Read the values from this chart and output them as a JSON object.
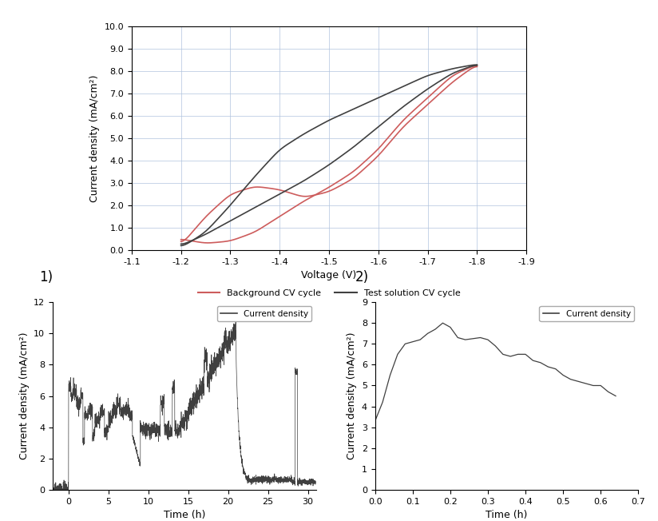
{
  "cv_xlabel": "Voltage (V)",
  "cv_ylabel": "Current density (mA/cm²)",
  "cv_xlim": [
    -1.9,
    -1.1
  ],
  "cv_ylim": [
    0.0,
    10.0
  ],
  "cv_xticks": [
    -1.9,
    -1.8,
    -1.7,
    -1.6,
    -1.5,
    -1.4,
    -1.3,
    -1.2,
    -1.1
  ],
  "cv_yticks": [
    0.0,
    1.0,
    2.0,
    3.0,
    4.0,
    5.0,
    6.0,
    7.0,
    8.0,
    9.0,
    10.0
  ],
  "bg_color": "#cd5c5c",
  "test_color": "#404040",
  "legend_bg": "Background CV cycle",
  "legend_test": "Test solution CV cycle",
  "plot1_xlabel": "Time (h)",
  "plot1_ylabel": "Current density (mA/cm²)",
  "plot1_xlim": [
    -2,
    31
  ],
  "plot1_ylim": [
    0,
    12
  ],
  "plot1_xticks": [
    0,
    5,
    10,
    15,
    20,
    25,
    30
  ],
  "plot1_yticks": [
    0,
    2,
    4,
    6,
    8,
    10,
    12
  ],
  "plot2_xlabel": "Time (h)",
  "plot2_ylabel": "Current density (mA/cm²)",
  "plot2_xlim": [
    0.0,
    0.7
  ],
  "plot2_ylim": [
    0,
    9
  ],
  "plot2_xticks": [
    0.0,
    0.1,
    0.2,
    0.3,
    0.4,
    0.5,
    0.6,
    0.7
  ],
  "plot2_yticks": [
    0,
    1,
    2,
    3,
    4,
    5,
    6,
    7,
    8,
    9
  ],
  "label1": "1)",
  "label2": "2)",
  "line_color": "#404040",
  "grid_color": "#b0c4de"
}
